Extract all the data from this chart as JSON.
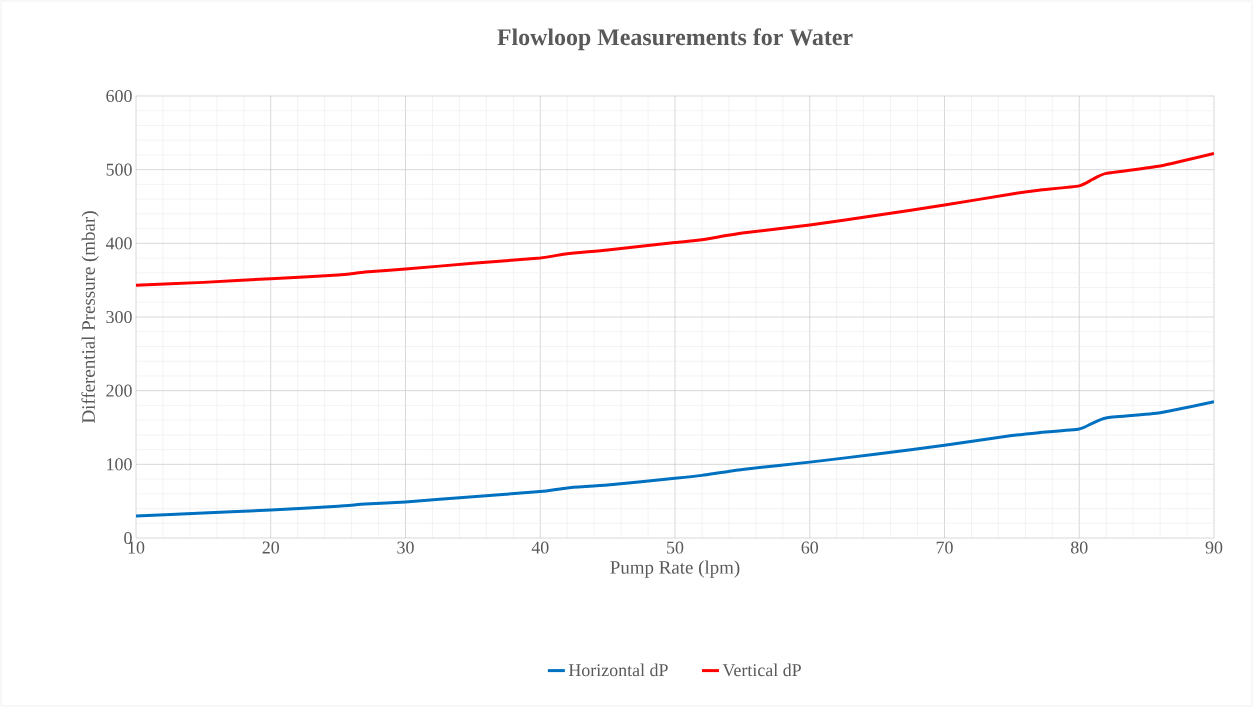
{
  "chart_data": {
    "type": "line",
    "title": "Flowloop Measurements for Water",
    "xlabel": "Pump Rate (lpm)",
    "ylabel": "Differential Pressure (mbar)",
    "x": [
      10,
      15,
      20,
      25,
      27,
      30,
      35,
      40,
      42,
      45,
      50,
      52,
      55,
      60,
      65,
      70,
      75,
      77,
      80,
      81,
      82,
      86,
      90
    ],
    "series": [
      {
        "name": "Horizontal dP",
        "color": "#0070c0",
        "values": [
          30,
          34,
          38,
          43,
          46,
          49,
          56,
          63,
          68,
          72,
          81,
          85,
          93,
          103,
          114,
          126,
          139,
          143,
          148,
          156,
          163,
          170,
          185
        ]
      },
      {
        "name": "Vertical dP",
        "color": "#ff0000",
        "values": [
          343,
          347,
          352,
          357,
          361,
          365,
          373,
          380,
          386,
          391,
          401,
          405,
          414,
          425,
          438,
          452,
          467,
          472,
          478,
          487,
          495,
          505,
          522
        ]
      }
    ],
    "xlim": [
      10,
      90
    ],
    "ylim": [
      0,
      600
    ],
    "xticks": [
      10,
      20,
      30,
      40,
      50,
      60,
      70,
      80,
      90
    ],
    "yticks": [
      0,
      100,
      200,
      300,
      400,
      500,
      600
    ],
    "grid": true,
    "legend": "bottom",
    "marker": "none",
    "line_style": "solid"
  }
}
